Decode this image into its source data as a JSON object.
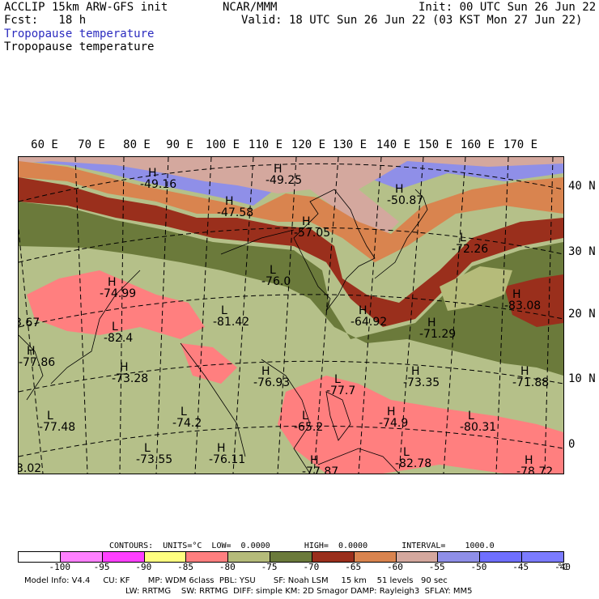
{
  "header": {
    "model": "ACCLIP 15km ARW-GFS init",
    "fcst": "Fcst:   18 h",
    "org": "NCAR/MMM",
    "init": "Init: 00 UTC Sun 26 Jun 22",
    "valid": "Valid: 18 UTC Sun 26 Jun 22 (03 KST Mon 27 Jun 22)",
    "field_blue": "Tropopause temperature",
    "field_black": "Tropopause temperature"
  },
  "map": {
    "lon_labels": [
      "60 E",
      "70 E",
      "80 E",
      "90 E",
      "100 E",
      "110 E",
      "120 E",
      "130 E",
      "140 E",
      "150 E",
      "160 E",
      "170 E"
    ],
    "lat_labels": [
      "40 N",
      "30 N",
      "20 N",
      "10 N",
      "0"
    ],
    "colors": {
      "v90": "#8f8fe8",
      "v85": "#d4a89e",
      "v80": "#d9844f",
      "v75": "#9a2f1c",
      "v70": "#6b7a3b",
      "v65": "#b5bb7a",
      "v60": "#ff7f7f",
      "v55": "#b5c089"
    },
    "labels": [
      {
        "t": "-49.16",
        "k": "H"
      },
      {
        "t": "-49.25",
        "k": "H"
      },
      {
        "t": "-47.58",
        "k": "H"
      },
      {
        "t": "-50.87",
        "k": "H"
      },
      {
        "t": "-57.05",
        "k": "H"
      },
      {
        "t": "-72.26",
        "k": "L"
      },
      {
        "t": "-76.0",
        "k": "L"
      },
      {
        "t": "-74.99",
        "k": "H"
      },
      {
        "t": "-83.08",
        "k": "H"
      },
      {
        "t": "-81.42",
        "k": "L"
      },
      {
        "t": "-82.4",
        "k": "L"
      },
      {
        "t": "-64.92",
        "k": "H"
      },
      {
        "t": "-71.29",
        "k": "H"
      },
      {
        "t": "3.67",
        "k": ""
      },
      {
        "t": "-77.86",
        "k": "H"
      },
      {
        "t": "-73.28",
        "k": "H"
      },
      {
        "t": "-76.93",
        "k": "H"
      },
      {
        "t": "-77.7",
        "k": "L"
      },
      {
        "t": "-73.35",
        "k": "H"
      },
      {
        "t": "-71.88",
        "k": "H"
      },
      {
        "t": "-77.48",
        "k": "L"
      },
      {
        "t": "-74.2",
        "k": "L"
      },
      {
        "t": "-65.2",
        "k": "L"
      },
      {
        "t": "-74.9",
        "k": "H"
      },
      {
        "t": "-80.31",
        "k": "L"
      },
      {
        "t": "-73.55",
        "k": "L"
      },
      {
        "t": "-76.11",
        "k": "H"
      },
      {
        "t": "-77.87",
        "k": "H"
      },
      {
        "t": "-82.78",
        "k": "L"
      },
      {
        "t": "-78.72",
        "k": "H"
      },
      {
        "t": "3.02",
        "k": ""
      }
    ]
  },
  "contours": {
    "text1": "CONTOURS:  UNITS=°C  LOW=  0.0000       HIGH=  0.0000       INTERVAL=    1000.0"
  },
  "legend": {
    "colors": [
      "#ffffff",
      "#ff80ff",
      "#ff40ff",
      "#ffff80",
      "#ff7f7f",
      "#b5bb7a",
      "#6b7a3b",
      "#9a2f1c",
      "#d9844f",
      "#d4a89e",
      "#8f8fe8",
      "#6f6fff",
      "#7b7bff"
    ],
    "ticks": [
      "-100",
      "-95",
      "-90",
      "-85",
      "-80",
      "-75",
      "-70",
      "-65",
      "-60",
      "-55",
      "-50",
      "-45",
      "-40",
      "°C"
    ]
  },
  "footer": {
    "line1": "Model Info: V4.4     CU: KF       MP: WDM 6class  PBL: YSU       SF: Noah LSM     15 km    51 levels   90 sec",
    "line2": "LW: RRTMG    SW: RRTMG  DIFF: simple KM: 2D Smagor DAMP: Rayleigh3  SFLAY: MM5"
  }
}
